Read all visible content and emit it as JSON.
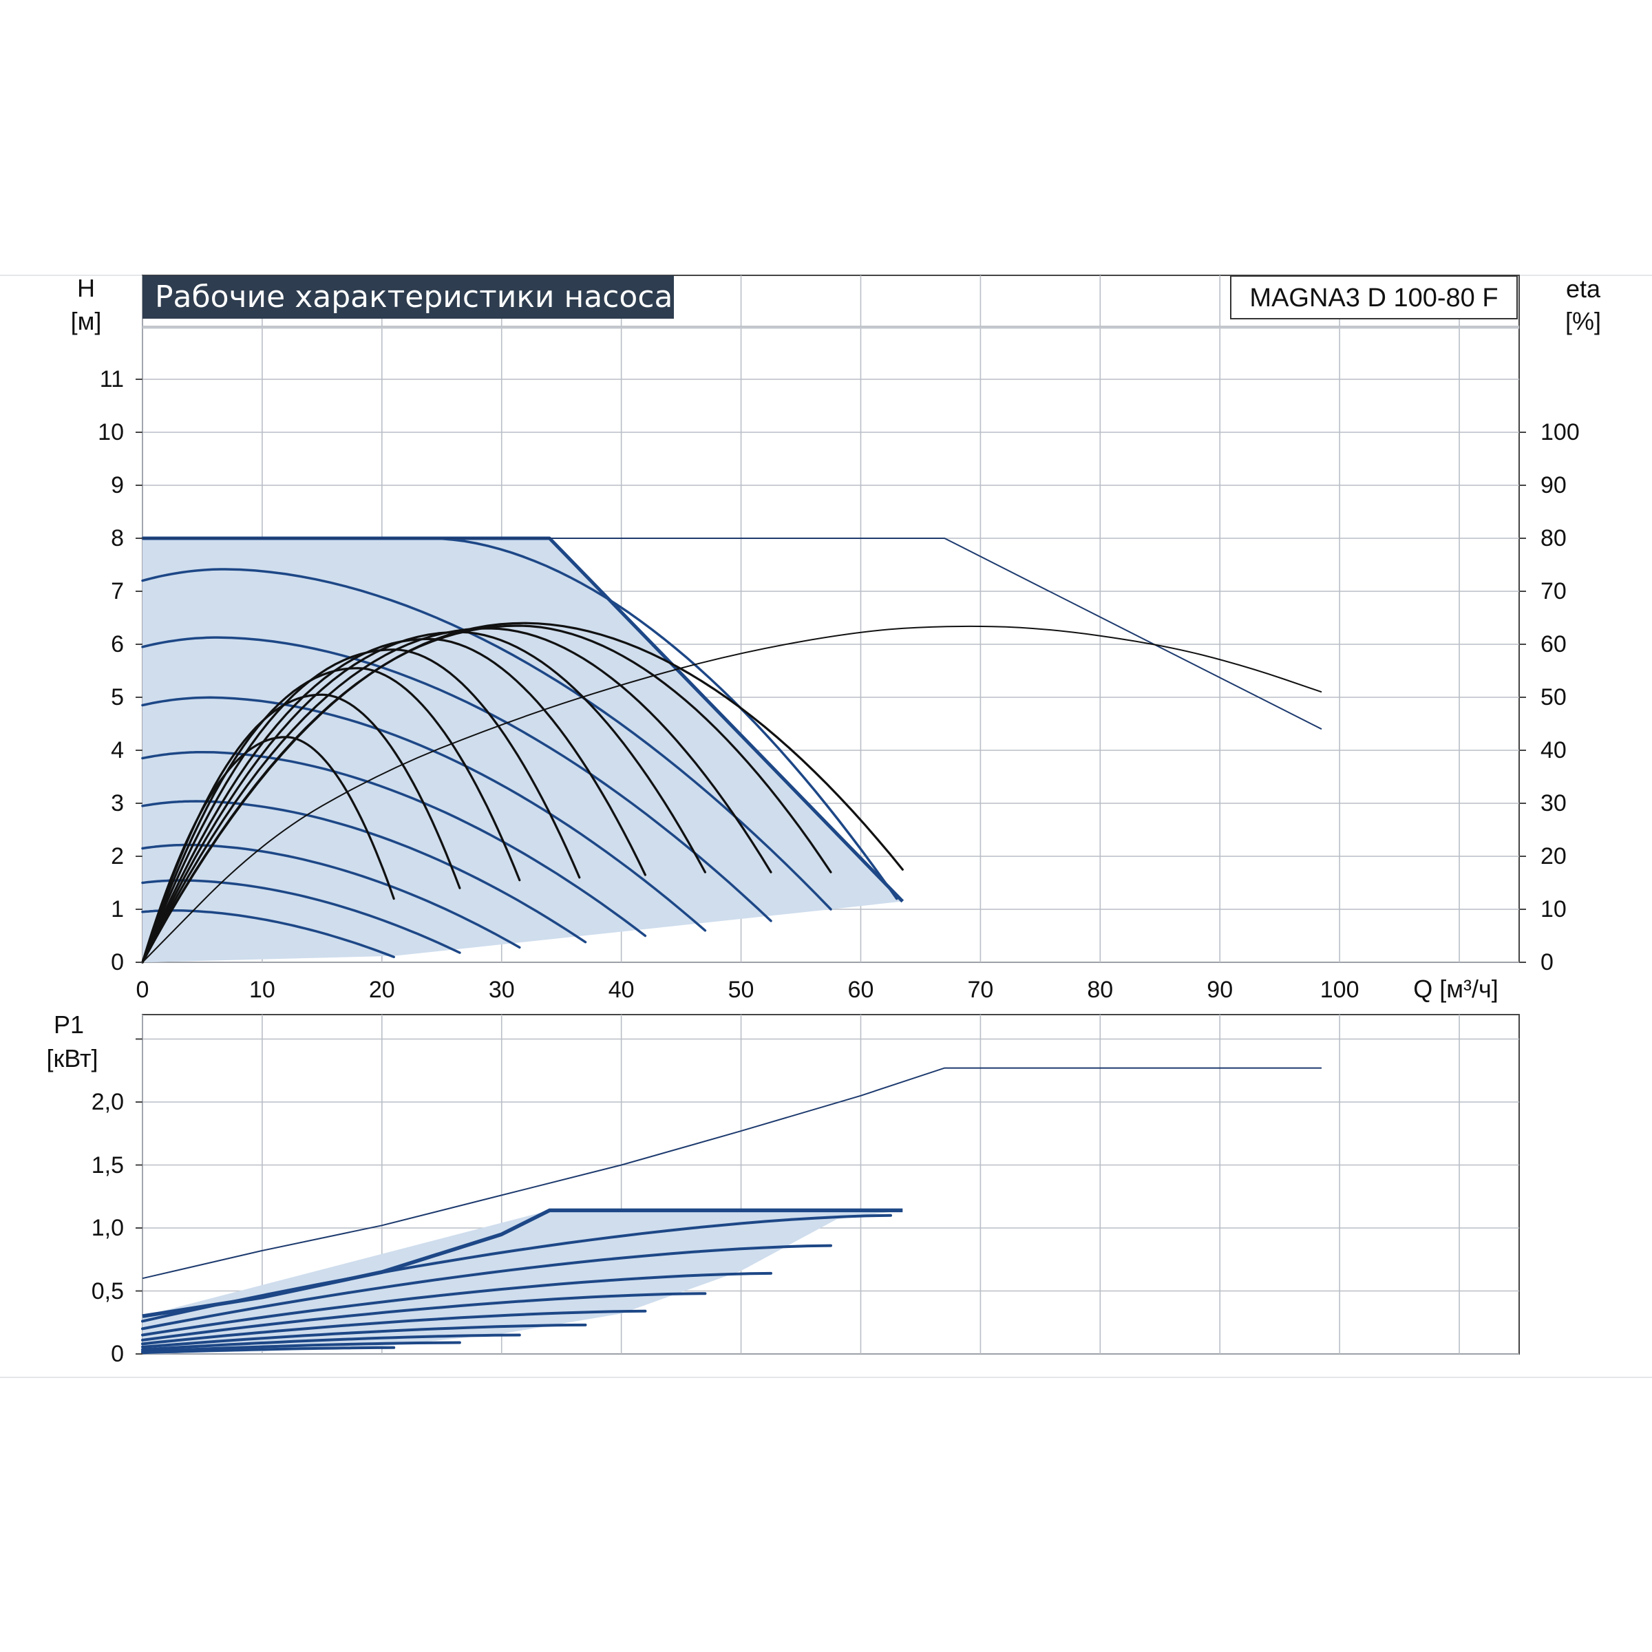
{
  "header": {
    "title": "Рабочие характеристики насоса",
    "model": "MAGNA3 D 100-80 F"
  },
  "colors": {
    "area_fill": "#cfdded",
    "blue_curve": "#1d4786",
    "thin_blue": "#1d3a6e",
    "black_curve": "#111111",
    "grid": "#b9bec6"
  },
  "chart_data": [
    {
      "type": "line",
      "title": "Рабочие характеристики насоса",
      "ylabel_symbol": "H",
      "ylabel_unit": "[м]",
      "y2label_symbol": "eta",
      "y2label_unit": "[%]",
      "xlabel": "Q [м³/ч]",
      "xlim": [
        0,
        115
      ],
      "ylim": [
        0,
        12
      ],
      "y2lim": [
        0,
        120
      ],
      "x_ticks": [
        "0",
        "10",
        "20",
        "30",
        "40",
        "50",
        "60",
        "70",
        "80",
        "90",
        "100"
      ],
      "y_ticks": [
        "0",
        "1",
        "2",
        "3",
        "4",
        "5",
        "6",
        "7",
        "8",
        "9",
        "10",
        "11"
      ],
      "y2_ticks": [
        "0",
        "10",
        "20",
        "30",
        "40",
        "50",
        "60",
        "70",
        "80",
        "90",
        "100"
      ],
      "grid": true,
      "operating_area_boundary": [
        [
          0,
          8
        ],
        [
          34,
          8
        ],
        [
          63.5,
          1.15
        ],
        [
          57.5,
          1.0
        ],
        [
          21,
          0.12
        ],
        [
          0,
          0
        ]
      ],
      "max_curve_single": {
        "name": "max",
        "points": [
          [
            0,
            8
          ],
          [
            34,
            8
          ],
          [
            63.5,
            1.15
          ]
        ]
      },
      "max_curve_twin": {
        "name": "max twin",
        "points": [
          [
            0,
            8
          ],
          [
            67,
            8
          ],
          [
            98.5,
            4.4
          ]
        ]
      },
      "blue_speed_curves": [
        {
          "H0": 8.0,
          "flat_to": 24,
          "end": [
            63,
            1.2
          ]
        },
        {
          "H0": 7.2,
          "end": [
            57.5,
            1.0
          ]
        },
        {
          "H0": 5.95,
          "end": [
            52.5,
            0.78
          ]
        },
        {
          "H0": 4.85,
          "end": [
            47,
            0.6
          ]
        },
        {
          "H0": 3.85,
          "end": [
            42,
            0.5
          ]
        },
        {
          "H0": 2.95,
          "end": [
            37,
            0.38
          ]
        },
        {
          "H0": 2.15,
          "end": [
            31.5,
            0.28
          ]
        },
        {
          "H0": 1.5,
          "end": [
            26.5,
            0.18
          ]
        },
        {
          "H0": 0.95,
          "end": [
            21,
            0.1
          ]
        }
      ],
      "efficiency_curves_pct": [
        {
          "peak": [
            12,
            42.5
          ],
          "end": [
            21,
            12
          ]
        },
        {
          "peak": [
            15,
            50.5
          ],
          "end": [
            26.5,
            14
          ]
        },
        {
          "peak": [
            18,
            55.5
          ],
          "end": [
            31.5,
            15.5
          ]
        },
        {
          "peak": [
            21,
            59
          ],
          "end": [
            36.5,
            16
          ]
        },
        {
          "peak": [
            24,
            61
          ],
          "end": [
            42,
            16.5
          ]
        },
        {
          "peak": [
            26.5,
            62.3
          ],
          "end": [
            47,
            17
          ]
        },
        {
          "peak": [
            29,
            63
          ],
          "end": [
            52.5,
            17
          ]
        },
        {
          "peak": [
            31.5,
            63.5
          ],
          "end": [
            57.5,
            17
          ]
        },
        {
          "peak": [
            32,
            64
          ],
          "end": [
            63.5,
            17.5
          ]
        }
      ],
      "efficiency_twin_pct": [
        [
          0,
          0
        ],
        [
          10,
          23
        ],
        [
          20,
          36
        ],
        [
          30,
          45
        ],
        [
          40,
          52.5
        ],
        [
          50,
          58.5
        ],
        [
          60,
          62.5
        ],
        [
          67,
          63.5
        ],
        [
          75,
          63.2
        ],
        [
          85,
          60
        ],
        [
          92,
          56
        ],
        [
          98.5,
          51
        ]
      ]
    },
    {
      "type": "line",
      "ylabel_symbol": "P1",
      "ylabel_unit": "[кВт]",
      "xlim": [
        0,
        115
      ],
      "ylim": [
        0,
        2.7
      ],
      "y_ticks": [
        "0",
        "0,5",
        "1,0",
        "1,5",
        "2,0"
      ],
      "grid": true,
      "power_area_boundary": [
        [
          0,
          0.3
        ],
        [
          34,
          1.14
        ],
        [
          63.5,
          1.14
        ],
        [
          58,
          1.07
        ],
        [
          50,
          0.66
        ],
        [
          40,
          0.32
        ],
        [
          30,
          0.16
        ],
        [
          20,
          0.06
        ],
        [
          10,
          0.02
        ],
        [
          0,
          0
        ]
      ],
      "power_max_single": [
        [
          0,
          0.3
        ],
        [
          10,
          0.45
        ],
        [
          20,
          0.65
        ],
        [
          30,
          0.95
        ],
        [
          34,
          1.14
        ],
        [
          63.5,
          1.14
        ]
      ],
      "power_max_twin": [
        [
          0,
          0.6
        ],
        [
          10,
          0.82
        ],
        [
          20,
          1.02
        ],
        [
          30,
          1.26
        ],
        [
          40,
          1.5
        ],
        [
          50,
          1.77
        ],
        [
          60,
          2.05
        ],
        [
          67,
          2.27
        ],
        [
          98.5,
          2.27
        ]
      ],
      "power_speed_curves": [
        {
          "p0": 0.26,
          "end": [
            62.5,
            1.1
          ]
        },
        {
          "p0": 0.2,
          "end": [
            57.5,
            0.86
          ]
        },
        {
          "p0": 0.15,
          "end": [
            52.5,
            0.64
          ]
        },
        {
          "p0": 0.11,
          "end": [
            47,
            0.48
          ]
        },
        {
          "p0": 0.08,
          "end": [
            42,
            0.34
          ]
        },
        {
          "p0": 0.055,
          "end": [
            37,
            0.23
          ]
        },
        {
          "p0": 0.035,
          "end": [
            31.5,
            0.15
          ]
        },
        {
          "p0": 0.02,
          "end": [
            26.5,
            0.09
          ]
        },
        {
          "p0": 0.01,
          "end": [
            21,
            0.05
          ]
        }
      ]
    }
  ]
}
